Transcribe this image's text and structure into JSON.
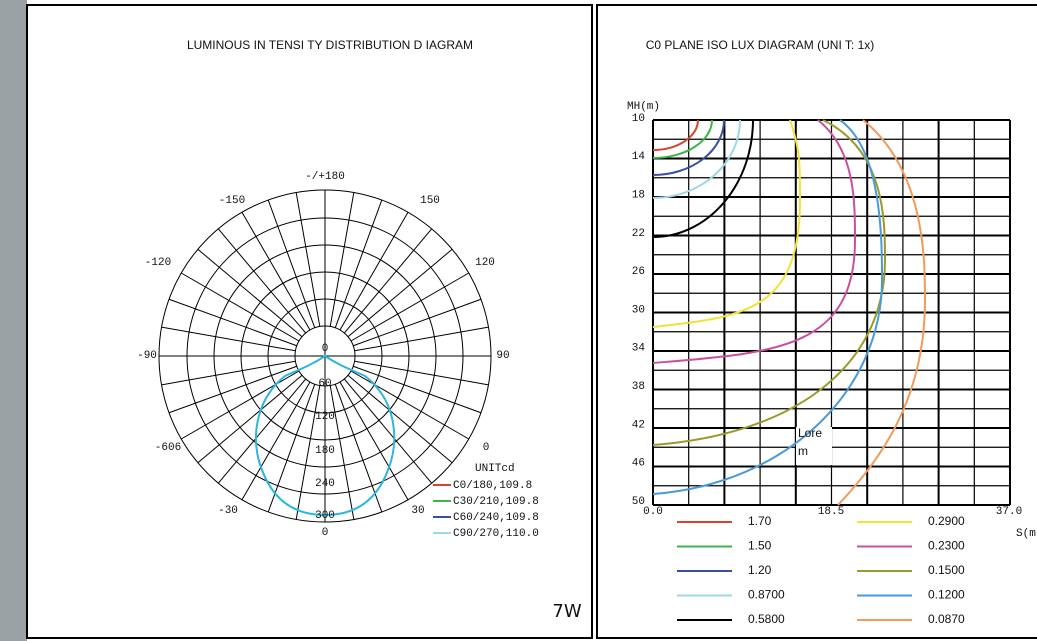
{
  "left": {
    "title": "LUMINOUS IN TENSI TY DISTRIBUTION D IAGRAM",
    "angle_labels": [
      "-/+180",
      "150",
      "-150",
      "-120",
      "120",
      "-90",
      "90",
      "-606",
      "0",
      "-30",
      "30",
      "0"
    ],
    "radial_labels": [
      "0",
      "60",
      "120",
      "180",
      "240",
      "300"
    ],
    "legend_title": "UNITcd",
    "legend": [
      "C0/180,109.8",
      "C30/210,109.8",
      "C60/240,109.8",
      "C90/270,110.0"
    ],
    "power": "7W"
  },
  "right": {
    "title": "C0 PLANE ISO LUX DIAGRAM (UNI T: 1x)",
    "y_axis_label": "MH(m)",
    "y_labels": [
      "10",
      "14",
      "18",
      "22",
      "26",
      "30",
      "34",
      "38",
      "42",
      "46",
      "50"
    ],
    "x_labels": [
      "0.0",
      "18.5",
      "37.0"
    ],
    "x_axis_label": "S(m",
    "annotation": [
      "Lore",
      "m"
    ],
    "legend": [
      "1.70",
      "1.50",
      "1.20",
      "0.8700",
      "0.5800",
      "0.2900",
      "0.2300",
      "0.1500",
      "0.1200",
      "0.0870"
    ]
  }
}
